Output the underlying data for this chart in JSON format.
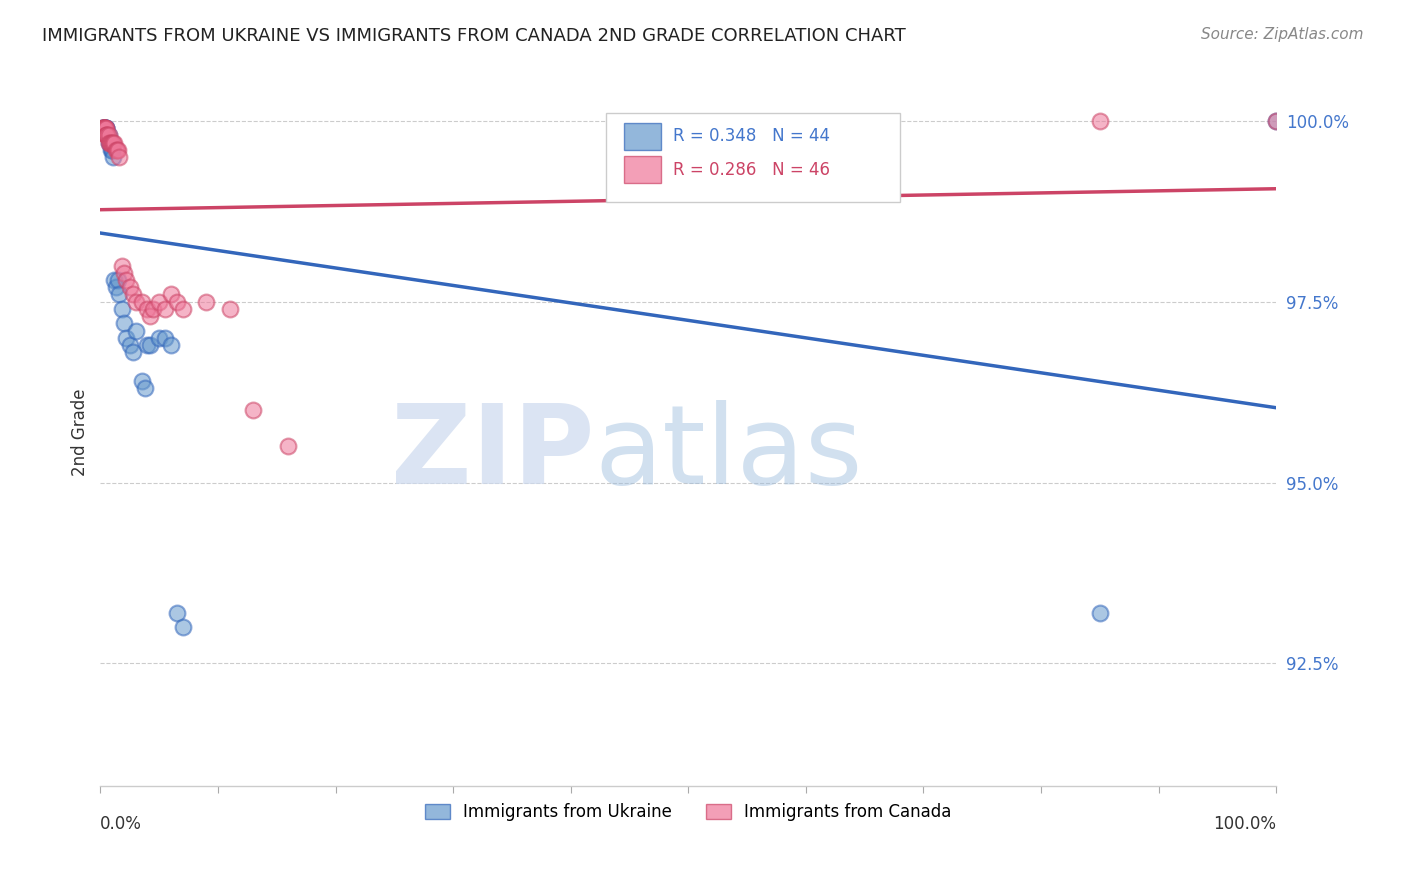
{
  "title": "IMMIGRANTS FROM UKRAINE VS IMMIGRANTS FROM CANADA 2ND GRADE CORRELATION CHART",
  "source": "Source: ZipAtlas.com",
  "ylabel": "2nd Grade",
  "ytick_labels": [
    "100.0%",
    "97.5%",
    "95.0%",
    "92.5%"
  ],
  "ytick_values": [
    1.0,
    0.975,
    0.95,
    0.925
  ],
  "legend_ukraine": "Immigrants from Ukraine",
  "legend_canada": "Immigrants from Canada",
  "R_ukraine": 0.348,
  "N_ukraine": 44,
  "R_canada": 0.286,
  "N_canada": 46,
  "color_ukraine": "#6699cc",
  "color_canada": "#ee7799",
  "color_ukraine_line": "#3366bb",
  "color_canada_line": "#cc4466",
  "background_color": "#ffffff",
  "ukraine_x": [
    0.001,
    0.002,
    0.002,
    0.003,
    0.003,
    0.003,
    0.004,
    0.004,
    0.004,
    0.005,
    0.005,
    0.005,
    0.006,
    0.006,
    0.007,
    0.007,
    0.008,
    0.008,
    0.009,
    0.009,
    0.01,
    0.01,
    0.011,
    0.012,
    0.013,
    0.015,
    0.016,
    0.018,
    0.02,
    0.022,
    0.025,
    0.028,
    0.03,
    0.035,
    0.038,
    0.04,
    0.042,
    0.05,
    0.055,
    0.06,
    0.065,
    0.07,
    0.85,
    1.0
  ],
  "ukraine_y": [
    0.999,
    0.999,
    0.999,
    0.999,
    0.999,
    0.999,
    0.999,
    0.999,
    0.999,
    0.999,
    0.999,
    0.999,
    0.998,
    0.998,
    0.998,
    0.997,
    0.997,
    0.997,
    0.997,
    0.996,
    0.996,
    0.996,
    0.995,
    0.978,
    0.977,
    0.978,
    0.976,
    0.974,
    0.972,
    0.97,
    0.969,
    0.968,
    0.971,
    0.964,
    0.963,
    0.969,
    0.969,
    0.97,
    0.97,
    0.969,
    0.932,
    0.93,
    0.932,
    1.0
  ],
  "canada_x": [
    0.001,
    0.002,
    0.002,
    0.003,
    0.003,
    0.003,
    0.004,
    0.004,
    0.004,
    0.005,
    0.005,
    0.005,
    0.006,
    0.006,
    0.007,
    0.007,
    0.008,
    0.009,
    0.01,
    0.011,
    0.012,
    0.013,
    0.014,
    0.015,
    0.016,
    0.018,
    0.02,
    0.022,
    0.025,
    0.028,
    0.03,
    0.035,
    0.04,
    0.042,
    0.045,
    0.05,
    0.055,
    0.06,
    0.065,
    0.07,
    0.09,
    0.11,
    0.13,
    0.16,
    0.85,
    1.0
  ],
  "canada_y": [
    0.999,
    0.999,
    0.999,
    0.999,
    0.999,
    0.999,
    0.999,
    0.999,
    0.999,
    0.999,
    0.998,
    0.998,
    0.998,
    0.998,
    0.998,
    0.997,
    0.997,
    0.997,
    0.997,
    0.997,
    0.997,
    0.996,
    0.996,
    0.996,
    0.995,
    0.98,
    0.979,
    0.978,
    0.977,
    0.976,
    0.975,
    0.975,
    0.974,
    0.973,
    0.974,
    0.975,
    0.974,
    0.976,
    0.975,
    0.974,
    0.975,
    0.974,
    0.96,
    0.955,
    1.0,
    1.0
  ],
  "xlim": [
    0.0,
    1.0
  ],
  "ylim": [
    0.908,
    1.006
  ]
}
